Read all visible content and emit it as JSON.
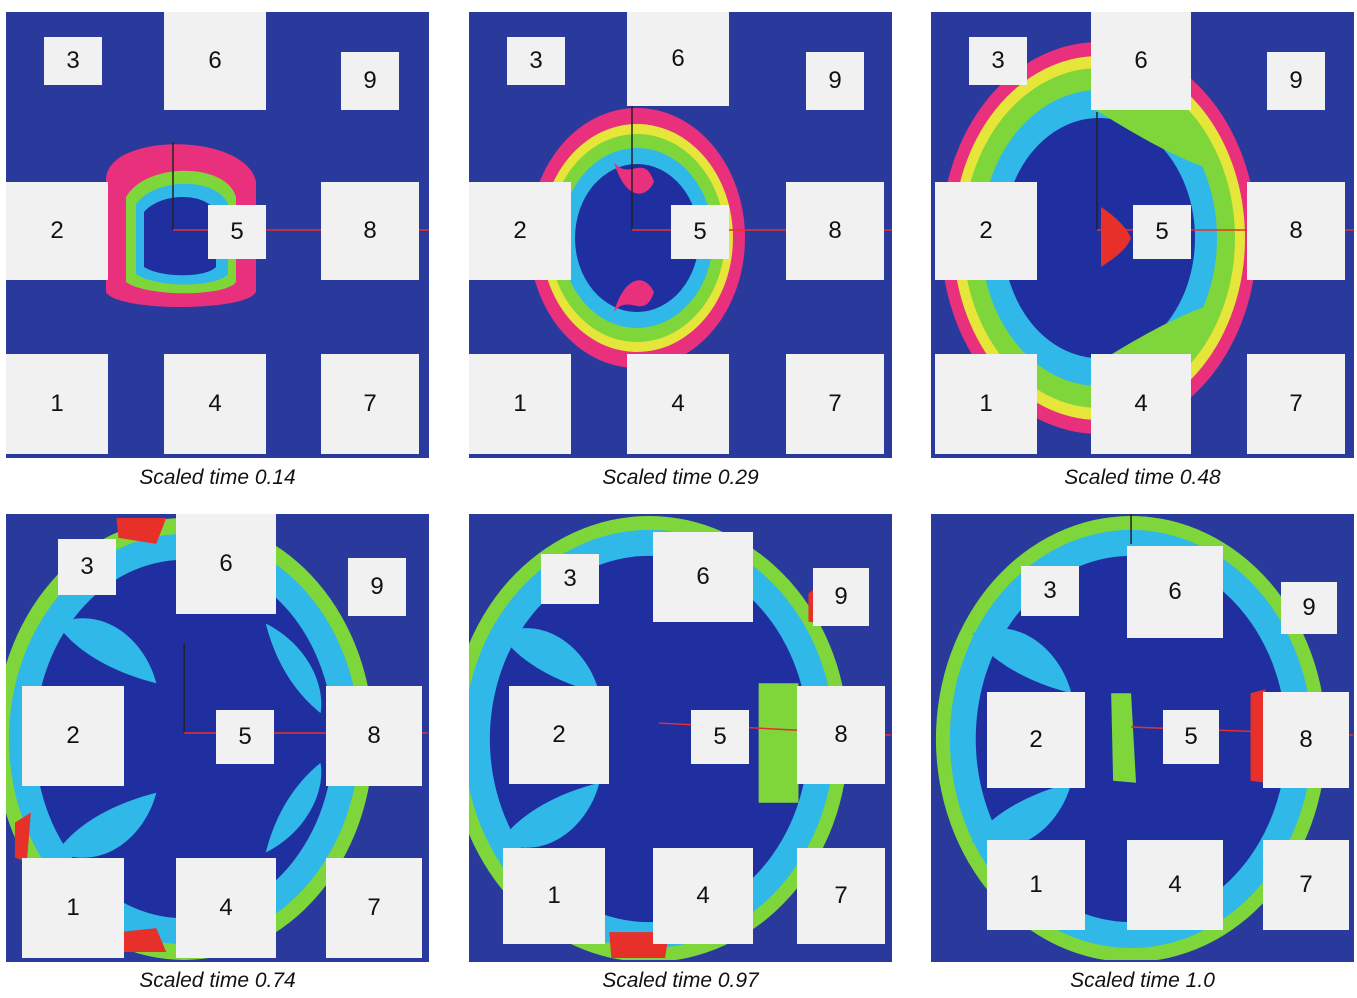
{
  "panels": [
    {
      "caption": "Scaled time 0.14",
      "blocks": [
        "1",
        "2",
        "3",
        "4",
        "5",
        "6",
        "7",
        "8",
        "9"
      ]
    },
    {
      "caption": "Scaled time 0.29",
      "blocks": [
        "1",
        "2",
        "3",
        "4",
        "5",
        "6",
        "7",
        "8",
        "9"
      ]
    },
    {
      "caption": "Scaled time 0.48",
      "blocks": [
        "1",
        "2",
        "3",
        "4",
        "5",
        "6",
        "7",
        "8",
        "9"
      ]
    },
    {
      "caption": "Scaled time 0.74",
      "blocks": [
        "1",
        "2",
        "3",
        "4",
        "5",
        "6",
        "7",
        "8",
        "9"
      ]
    },
    {
      "caption": "Scaled time 0.97",
      "blocks": [
        "1",
        "2",
        "3",
        "4",
        "5",
        "6",
        "7",
        "8",
        "9"
      ]
    },
    {
      "caption": "Scaled time 1.0",
      "blocks": [
        "1",
        "2",
        "3",
        "4",
        "5",
        "6",
        "7",
        "8",
        "9"
      ]
    }
  ],
  "colors": {
    "background": "#2a3a9c",
    "deep": "#1f2fa0",
    "cyan": "#2fb8e8",
    "green": "#7fd63a",
    "yellow": "#e6e63a",
    "red": "#e8302a",
    "magenta": "#e8307c",
    "block": "#f1f1f1"
  }
}
